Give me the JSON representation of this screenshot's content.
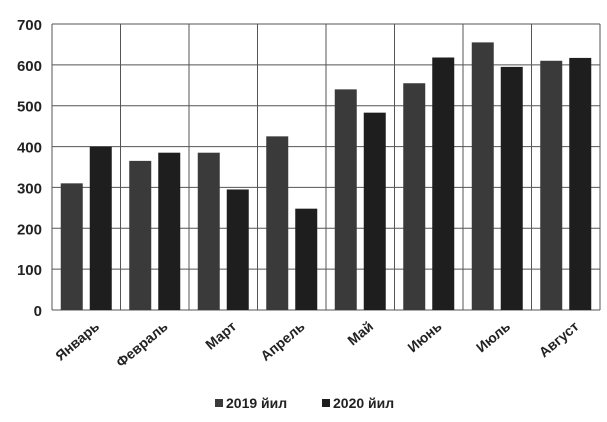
{
  "chart_data": {
    "type": "bar",
    "title": "",
    "xlabel": "",
    "ylabel": "",
    "categories": [
      "Январь",
      "Февраль",
      "Март",
      "Апрель",
      "Май",
      "Июнь",
      "Июль",
      "Август"
    ],
    "series": [
      {
        "name": "2019 йил",
        "values": [
          310,
          365,
          385,
          425,
          540,
          555,
          655,
          610
        ],
        "color": "#3a3a3a"
      },
      {
        "name": "2020 йил",
        "values": [
          400,
          385,
          295,
          248,
          483,
          618,
          595,
          617
        ],
        "color": "#1e1e1e"
      }
    ],
    "ylim": [
      0,
      700
    ],
    "yticks": [
      0,
      100,
      200,
      300,
      400,
      500,
      600,
      700
    ],
    "grid": true,
    "legend_position": "bottom"
  }
}
